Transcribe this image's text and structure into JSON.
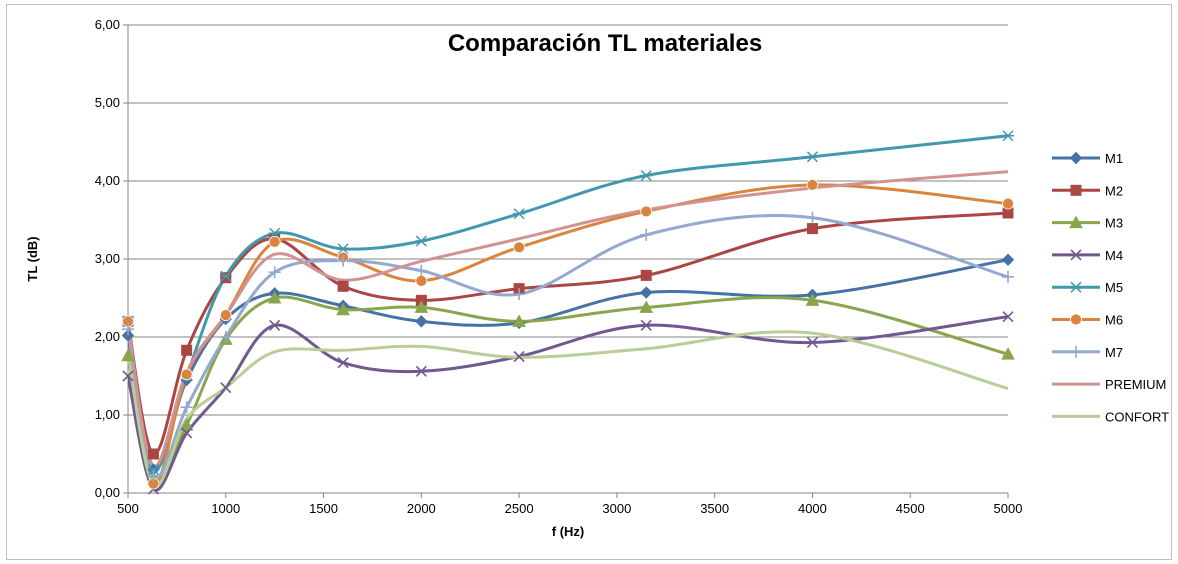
{
  "chart_data": {
    "type": "line",
    "title": "Comparación TL materiales",
    "xlabel": "f (Hz)",
    "ylabel": "TL (dB)",
    "xlim": [
      500,
      5000
    ],
    "ylim": [
      0,
      6
    ],
    "x_ticks": [
      "500",
      "1000",
      "1500",
      "2000",
      "2500",
      "3000",
      "3500",
      "4000",
      "4500",
      "5000"
    ],
    "y_ticks": [
      "0,00",
      "1,00",
      "2,00",
      "3,00",
      "4,00",
      "5,00",
      "6,00"
    ],
    "grid": "horizontal",
    "legend_position": "right",
    "x": [
      500,
      630,
      800,
      1000,
      1250,
      1600,
      2000,
      2500,
      3150,
      4000,
      5000
    ],
    "series": [
      {
        "name": "M1",
        "color": "#4572a7",
        "marker": "diamond",
        "values": [
          2.02,
          0.3,
          1.45,
          2.23,
          2.56,
          2.4,
          2.2,
          2.18,
          2.57,
          2.54,
          2.99
        ]
      },
      {
        "name": "M2",
        "color": "#aa4643",
        "marker": "square",
        "values": [
          2.2,
          0.5,
          1.83,
          2.76,
          3.26,
          2.65,
          2.47,
          2.62,
          2.79,
          3.39,
          3.59
        ]
      },
      {
        "name": "M3",
        "color": "#89a54e",
        "marker": "triangle",
        "values": [
          1.76,
          0.18,
          0.87,
          1.97,
          2.5,
          2.35,
          2.38,
          2.2,
          2.38,
          2.47,
          1.78
        ]
      },
      {
        "name": "M4",
        "color": "#71588f",
        "marker": "x",
        "values": [
          1.5,
          0.05,
          0.77,
          1.35,
          2.15,
          1.67,
          1.56,
          1.75,
          2.15,
          1.93,
          2.26
        ]
      },
      {
        "name": "M5",
        "color": "#4198af",
        "marker": "star",
        "values": [
          2.2,
          0.3,
          1.5,
          2.78,
          3.33,
          3.13,
          3.23,
          3.58,
          4.07,
          4.31,
          4.58
        ]
      },
      {
        "name": "M6",
        "color": "#db843d",
        "marker": "circle",
        "values": [
          2.2,
          0.12,
          1.52,
          2.28,
          3.22,
          3.02,
          2.72,
          3.15,
          3.61,
          3.95,
          3.71
        ]
      },
      {
        "name": "M7",
        "color": "#93a9cf",
        "marker": "plus",
        "values": [
          2.1,
          0.22,
          1.1,
          2.0,
          2.83,
          2.98,
          2.85,
          2.55,
          3.31,
          3.53,
          2.77
        ]
      },
      {
        "name": "PREMIUM",
        "color": "#d19392",
        "marker": "none",
        "values": [
          2.15,
          0.35,
          1.55,
          2.28,
          3.06,
          2.73,
          2.97,
          3.26,
          3.63,
          3.91,
          4.12
        ]
      },
      {
        "name": "CONFORT",
        "color": "#b9cd96",
        "marker": "none",
        "values": [
          1.8,
          0.1,
          0.95,
          1.35,
          1.81,
          1.83,
          1.88,
          1.74,
          1.85,
          2.05,
          1.34
        ]
      }
    ]
  }
}
